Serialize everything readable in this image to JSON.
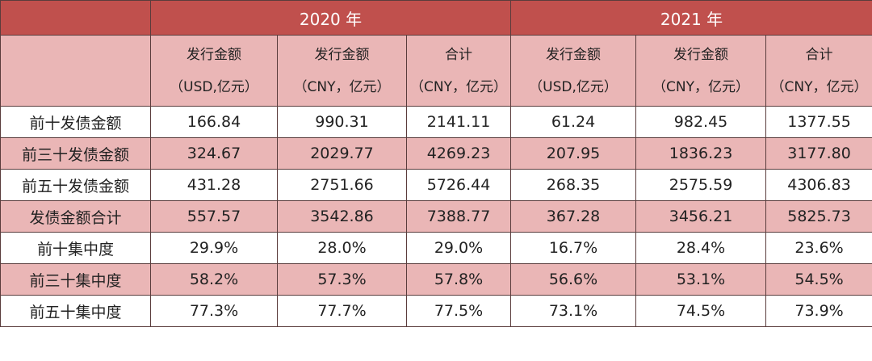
{
  "header": {
    "years": [
      "2020 年",
      "2021 年"
    ],
    "columns": [
      {
        "line1": "发行金额",
        "line2": "（USD,亿元）"
      },
      {
        "line1": "发行金额",
        "line2": "（CNY，亿元）"
      },
      {
        "line1": "合计",
        "line2": "（CNY，亿元）"
      },
      {
        "line1": "发行金额",
        "line2": "（USD,亿元）"
      },
      {
        "line1": "发行金额",
        "line2": "（CNY，亿元）"
      },
      {
        "line1": "合计",
        "line2": "（CNY，亿元）"
      }
    ]
  },
  "rows": [
    {
      "label": "前十发债金额",
      "values": [
        "166.84",
        "990.31",
        "2141.11",
        "61.24",
        "982.45",
        "1377.55"
      ]
    },
    {
      "label": "前三十发债金额",
      "values": [
        "324.67",
        "2029.77",
        "4269.23",
        "207.95",
        "1836.23",
        "3177.80"
      ]
    },
    {
      "label": "前五十发债金额",
      "values": [
        "431.28",
        "2751.66",
        "5726.44",
        "268.35",
        "2575.59",
        "4306.83"
      ]
    },
    {
      "label": "发债金额合计",
      "values": [
        "557.57",
        "3542.86",
        "7388.77",
        "367.28",
        "3456.21",
        "5825.73"
      ]
    },
    {
      "label": "前十集中度",
      "values": [
        "29.9%",
        "28.0%",
        "29.0%",
        "16.7%",
        "28.4%",
        "23.6%"
      ]
    },
    {
      "label": "前三十集中度",
      "values": [
        "58.2%",
        "57.3%",
        "57.8%",
        "56.6%",
        "53.1%",
        "54.5%"
      ]
    },
    {
      "label": "前五十集中度",
      "values": [
        "77.3%",
        "77.7%",
        "77.5%",
        "73.1%",
        "74.5%",
        "73.9%"
      ]
    }
  ],
  "colors": {
    "year_header_bg": "#c0504d",
    "band_bg": "#eab6b6",
    "plain_bg": "#ffffff"
  }
}
